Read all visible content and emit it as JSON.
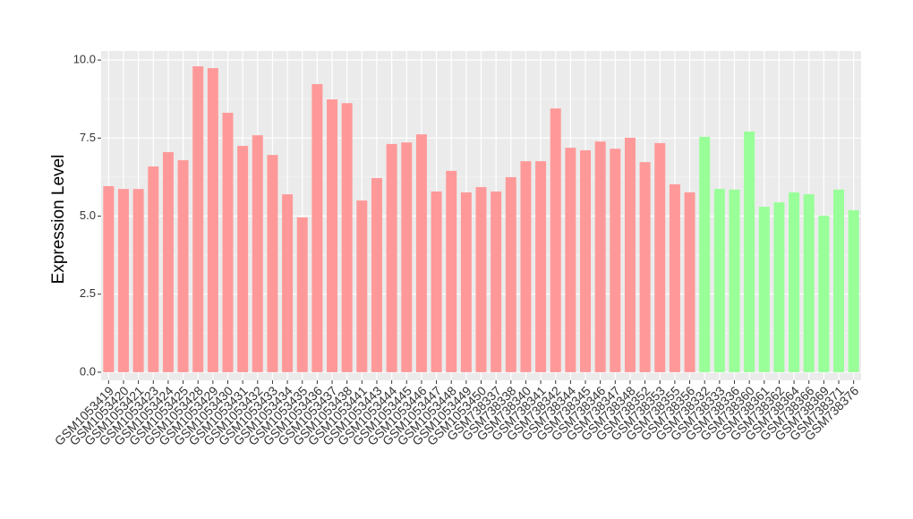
{
  "chart_data": {
    "type": "bar",
    "y_label": "Expression Level",
    "categories": [
      "GSM1053419",
      "GSM1053420",
      "GSM1053421",
      "GSM1053423",
      "GSM1053424",
      "GSM1053425",
      "GSM1053428",
      "GSM1053429",
      "GSM1053430",
      "GSM1053431",
      "GSM1053432",
      "GSM1053433",
      "GSM1053434",
      "GSM1053435",
      "GSM1053436",
      "GSM1053437",
      "GSM1053438",
      "GSM1053441",
      "GSM1053443",
      "GSM1053444",
      "GSM1053445",
      "GSM1053446",
      "GSM1053447",
      "GSM1053448",
      "GSM1053449",
      "GSM1053450",
      "GSM738337",
      "GSM738338",
      "GSM738340",
      "GSM738341",
      "GSM738342",
      "GSM738344",
      "GSM738345",
      "GSM738346",
      "GSM738347",
      "GSM738348",
      "GSM738352",
      "GSM738353",
      "GSM738355",
      "GSM738356",
      "GSM738332",
      "GSM738333",
      "GSM738336",
      "GSM738360",
      "GSM738361",
      "GSM738362",
      "GSM738364",
      "GSM738366",
      "GSM738369",
      "GSM738371",
      "GSM738376"
    ],
    "values": [
      5.96,
      5.87,
      5.87,
      6.59,
      7.05,
      6.79,
      9.8,
      9.74,
      8.31,
      7.25,
      7.59,
      6.96,
      5.7,
      4.96,
      9.23,
      8.74,
      8.62,
      5.5,
      6.22,
      7.31,
      7.36,
      7.62,
      5.79,
      6.45,
      5.76,
      5.93,
      5.79,
      6.25,
      6.76,
      6.76,
      8.45,
      7.19,
      7.11,
      7.39,
      7.16,
      7.51,
      6.73,
      7.34,
      6.02,
      5.76,
      7.54,
      5.87,
      5.85,
      7.71,
      5.3,
      5.44,
      5.76,
      5.7,
      5.01,
      5.85,
      5.19
    ],
    "colors": [
      "#ff9999",
      "#ff9999",
      "#ff9999",
      "#ff9999",
      "#ff9999",
      "#ff9999",
      "#ff9999",
      "#ff9999",
      "#ff9999",
      "#ff9999",
      "#ff9999",
      "#ff9999",
      "#ff9999",
      "#ff9999",
      "#ff9999",
      "#ff9999",
      "#ff9999",
      "#ff9999",
      "#ff9999",
      "#ff9999",
      "#ff9999",
      "#ff9999",
      "#ff9999",
      "#ff9999",
      "#ff9999",
      "#ff9999",
      "#ff9999",
      "#ff9999",
      "#ff9999",
      "#ff9999",
      "#ff9999",
      "#ff9999",
      "#ff9999",
      "#ff9999",
      "#ff9999",
      "#ff9999",
      "#ff9999",
      "#ff9999",
      "#ff9999",
      "#ff9999",
      "#99ff99",
      "#99ff99",
      "#99ff99",
      "#99ff99",
      "#99ff99",
      "#99ff99",
      "#99ff99",
      "#99ff99",
      "#99ff99",
      "#99ff99",
      "#99ff99"
    ],
    "ylim": [
      -0.26,
      10.29
    ],
    "yticks": [
      {
        "value": 0,
        "label": "0.0"
      },
      {
        "value": 2.5,
        "label": "2.5"
      },
      {
        "value": 5,
        "label": "5.0"
      },
      {
        "value": 7.5,
        "label": "7.5"
      },
      {
        "value": 10,
        "label": "10.0"
      }
    ],
    "grid": true
  }
}
